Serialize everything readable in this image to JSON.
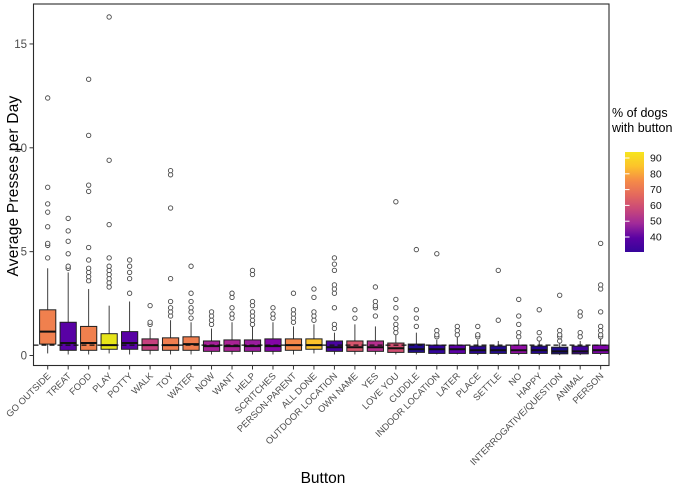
{
  "figure": {
    "y_axis": {
      "title": "Average Presses per Day",
      "ticks": [
        0,
        5,
        10,
        15
      ]
    },
    "x_axis": {
      "title": "Button"
    },
    "reference_line": {
      "value": 0.5,
      "style": "dashed",
      "color": "#111111"
    },
    "legend": {
      "title_line1": "% of dogs",
      "title_line2": "with button",
      "ticks": [
        90,
        80,
        70,
        60,
        50,
        40
      ],
      "gradient_top_to_bottom": [
        "#F6E51E",
        "#FCC32B",
        "#F58B47",
        "#E4695D",
        "#C94879",
        "#A02A99",
        "#5B02A3",
        "#36049B"
      ]
    }
  },
  "chart_data": {
    "type": "boxplot",
    "title": "",
    "xlabel": "Button",
    "ylabel": "Average Presses per Day",
    "ylim": [
      0,
      17
    ],
    "y_ticks": [
      0,
      5,
      10,
      15
    ],
    "grid": false,
    "legend_position": "right",
    "color_scale": {
      "label": "% of dogs with button",
      "palette": "plasma",
      "domain": [
        40,
        90
      ]
    },
    "reference_line_y": 0.5,
    "categories": [
      {
        "name": "GO OUTSIDE",
        "pct_with_button": 80,
        "color": "#F0804E",
        "low": 0.1,
        "q1": 0.55,
        "median": 1.15,
        "q3": 2.2,
        "high": 4.2,
        "outliers": [
          4.7,
          5.3,
          5.4,
          6.2,
          6.9,
          7.3,
          8.1,
          12.4
        ]
      },
      {
        "name": "TREAT",
        "pct_with_button": 46,
        "color": "#5901A5",
        "low": 0.05,
        "q1": 0.25,
        "median": 0.6,
        "q3": 1.6,
        "high": 4.0,
        "outliers": [
          4.2,
          4.3,
          4.9,
          5.5,
          6.0,
          6.6
        ]
      },
      {
        "name": "FOOD",
        "pct_with_button": 80,
        "color": "#F0804E",
        "low": 0.05,
        "q1": 0.25,
        "median": 0.6,
        "q3": 1.4,
        "high": 3.2,
        "outliers": [
          3.6,
          3.8,
          4.0,
          4.2,
          4.6,
          5.2,
          7.9,
          8.2,
          10.6,
          13.3
        ]
      },
      {
        "name": "PLAY",
        "pct_with_button": 93,
        "color": "#E6E419",
        "low": 0.1,
        "q1": 0.3,
        "median": 0.5,
        "q3": 1.05,
        "high": 2.4,
        "outliers": [
          3.3,
          3.5,
          3.7,
          3.9,
          4.1,
          4.3,
          4.7,
          6.3,
          9.4,
          16.3
        ]
      },
      {
        "name": "POTTY",
        "pct_with_button": 46,
        "color": "#5901A5",
        "low": 0.05,
        "q1": 0.3,
        "median": 0.6,
        "q3": 1.15,
        "high": 2.6,
        "outliers": [
          3.0,
          3.7,
          4.0,
          4.3,
          4.6
        ]
      },
      {
        "name": "WALK",
        "pct_with_button": 62,
        "color": "#C5407E",
        "low": 0.05,
        "q1": 0.25,
        "median": 0.5,
        "q3": 0.8,
        "high": 1.3,
        "outliers": [
          1.5,
          1.6,
          2.4
        ]
      },
      {
        "name": "TOY",
        "pct_with_button": 79,
        "color": "#EF7E4F",
        "low": 0.05,
        "q1": 0.25,
        "median": 0.5,
        "q3": 0.85,
        "high": 1.7,
        "outliers": [
          1.9,
          2.1,
          2.3,
          2.6,
          3.7,
          7.1,
          8.7,
          8.9
        ]
      },
      {
        "name": "WATER",
        "pct_with_button": 79,
        "color": "#EF7E4F",
        "low": 0.05,
        "q1": 0.25,
        "median": 0.55,
        "q3": 0.9,
        "high": 1.6,
        "outliers": [
          1.8,
          2.1,
          2.3,
          2.6,
          3.0,
          4.3
        ]
      },
      {
        "name": "NOW",
        "pct_with_button": 54,
        "color": "#A62098",
        "low": 0.05,
        "q1": 0.2,
        "median": 0.45,
        "q3": 0.7,
        "high": 1.3,
        "outliers": [
          1.5,
          1.7,
          1.9,
          2.1
        ]
      },
      {
        "name": "WANT",
        "pct_with_button": 55,
        "color": "#AA2295",
        "low": 0.05,
        "q1": 0.2,
        "median": 0.45,
        "q3": 0.75,
        "high": 1.6,
        "outliers": [
          1.8,
          2.0,
          2.3,
          2.8,
          3.0
        ]
      },
      {
        "name": "HELP",
        "pct_with_button": 52,
        "color": "#9A1C9E",
        "low": 0.05,
        "q1": 0.2,
        "median": 0.45,
        "q3": 0.75,
        "high": 1.4,
        "outliers": [
          1.5,
          1.7,
          1.9,
          2.1,
          2.4,
          2.6,
          3.9,
          4.1
        ]
      },
      {
        "name": "SCRITCHES",
        "pct_with_button": 49,
        "color": "#8405A7",
        "low": 0.05,
        "q1": 0.2,
        "median": 0.45,
        "q3": 0.8,
        "high": 1.6,
        "outliers": [
          1.8,
          2.0,
          2.3
        ]
      },
      {
        "name": "PERSON-PARENT",
        "pct_with_button": 81,
        "color": "#F48849",
        "low": 0.05,
        "q1": 0.25,
        "median": 0.5,
        "q3": 0.8,
        "high": 1.4,
        "outliers": [
          1.6,
          1.8,
          2.0,
          2.2,
          3.0
        ]
      },
      {
        "name": "ALL DONE",
        "pct_with_button": 87,
        "color": "#FBC22B",
        "low": 0.1,
        "q1": 0.3,
        "median": 0.5,
        "q3": 0.8,
        "high": 1.5,
        "outliers": [
          1.7,
          1.9,
          2.1,
          2.8,
          3.2
        ]
      },
      {
        "name": "OUTDOOR LOCATION",
        "pct_with_button": 44,
        "color": "#4903A0",
        "low": 0.05,
        "q1": 0.2,
        "median": 0.4,
        "q3": 0.7,
        "high": 1.1,
        "outliers": [
          1.3,
          1.5,
          2.3,
          3.0,
          3.2,
          3.4,
          4.1,
          4.4,
          4.7
        ]
      },
      {
        "name": "OWN NAME",
        "pct_with_button": 66,
        "color": "#D6556D",
        "low": 0.05,
        "q1": 0.2,
        "median": 0.4,
        "q3": 0.7,
        "high": 1.5,
        "outliers": [
          1.8,
          2.2
        ]
      },
      {
        "name": "YES",
        "pct_with_button": 57,
        "color": "#B42E8D",
        "low": 0.05,
        "q1": 0.2,
        "median": 0.4,
        "q3": 0.7,
        "high": 1.4,
        "outliers": [
          1.9,
          2.3,
          2.4,
          2.6,
          3.3
        ]
      },
      {
        "name": "LOVE YOU",
        "pct_with_button": 64,
        "color": "#D14E71",
        "low": 0.05,
        "q1": 0.15,
        "median": 0.35,
        "q3": 0.6,
        "high": 1.0,
        "outliers": [
          1.1,
          1.3,
          1.5,
          1.8,
          2.3,
          2.7,
          7.4
        ]
      },
      {
        "name": "CUDDLE",
        "pct_with_button": 36,
        "color": "#230C8F",
        "low": 0.05,
        "q1": 0.15,
        "median": 0.3,
        "q3": 0.55,
        "high": 1.1,
        "outliers": [
          1.4,
          1.8,
          2.2,
          5.1
        ]
      },
      {
        "name": "INDOOR LOCATION",
        "pct_with_button": 39,
        "color": "#33049B",
        "low": 0.05,
        "q1": 0.1,
        "median": 0.3,
        "q3": 0.5,
        "high": 0.75,
        "outliers": [
          0.9,
          1.0,
          1.2,
          4.9
        ]
      },
      {
        "name": "LATER",
        "pct_with_button": 45,
        "color": "#5C01A6",
        "low": 0.05,
        "q1": 0.1,
        "median": 0.3,
        "q3": 0.5,
        "high": 0.9,
        "outliers": [
          1.0,
          1.2,
          1.4
        ]
      },
      {
        "name": "PLACE",
        "pct_with_button": 37,
        "color": "#2A0593",
        "low": 0.02,
        "q1": 0.1,
        "median": 0.25,
        "q3": 0.45,
        "high": 0.75,
        "outliers": [
          0.9,
          1.0,
          1.4
        ]
      },
      {
        "name": "SETTLE",
        "pct_with_button": 36,
        "color": "#250A90",
        "low": 0.02,
        "q1": 0.1,
        "median": 0.25,
        "q3": 0.45,
        "high": 0.7,
        "outliers": [
          1.7,
          4.1
        ]
      },
      {
        "name": "NO",
        "pct_with_button": 50,
        "color": "#8F0DA4",
        "low": 0.02,
        "q1": 0.1,
        "median": 0.25,
        "q3": 0.5,
        "high": 0.75,
        "outliers": [
          0.9,
          1.1,
          1.5,
          1.9,
          2.7
        ]
      },
      {
        "name": "HAPPY",
        "pct_with_button": 36,
        "color": "#260591",
        "low": 0.02,
        "q1": 0.1,
        "median": 0.25,
        "q3": 0.45,
        "high": 0.7,
        "outliers": [
          0.8,
          1.1,
          2.2
        ]
      },
      {
        "name": "INTERROGATIVE/QUESTION",
        "pct_with_button": 34,
        "color": "#1D0C88",
        "low": 0.02,
        "q1": 0.08,
        "median": 0.2,
        "q3": 0.4,
        "high": 0.65,
        "outliers": [
          0.7,
          0.9,
          1.0,
          1.2,
          2.9
        ]
      },
      {
        "name": "ANIMAL",
        "pct_with_button": 41,
        "color": "#42039D",
        "low": 0.02,
        "q1": 0.08,
        "median": 0.2,
        "q3": 0.45,
        "high": 0.7,
        "outliers": [
          0.9,
          1.1,
          1.9,
          2.1
        ]
      },
      {
        "name": "PERSON",
        "pct_with_button": 48,
        "color": "#7E03A8",
        "low": 0.02,
        "q1": 0.1,
        "median": 0.25,
        "q3": 0.5,
        "high": 0.8,
        "outliers": [
          0.9,
          1.0,
          1.2,
          1.4,
          2.1,
          3.2,
          3.4,
          5.4
        ]
      }
    ]
  }
}
